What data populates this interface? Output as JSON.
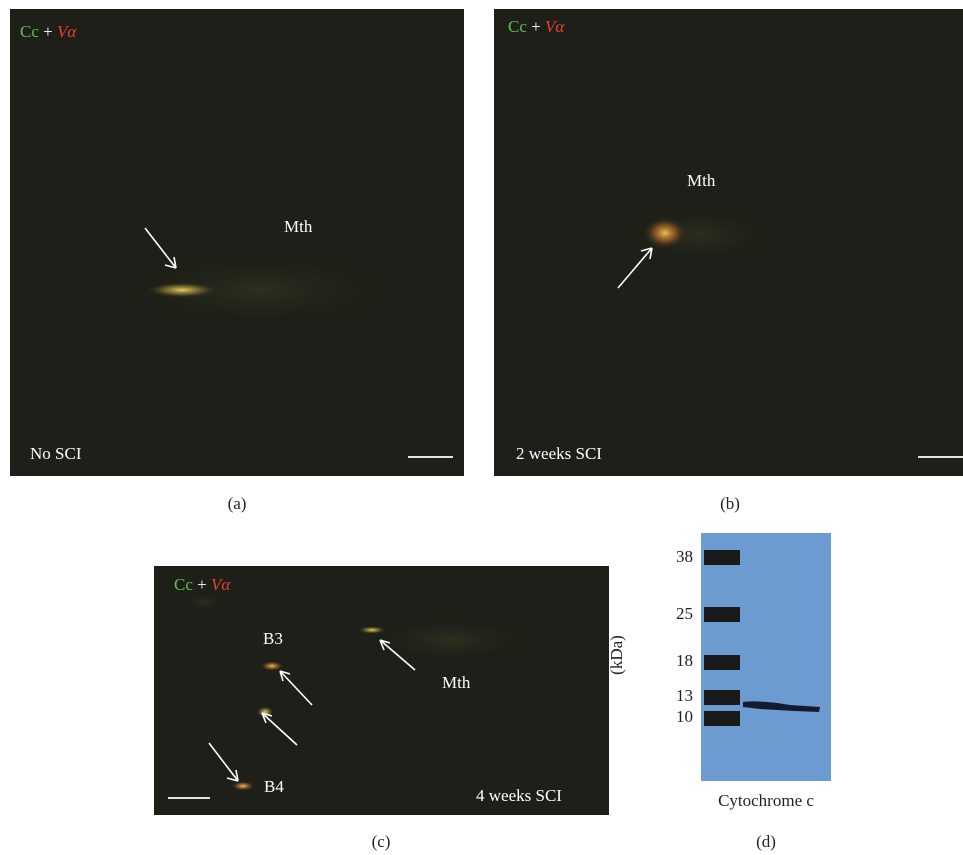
{
  "panels": [
    {
      "caption": "(a)",
      "stain": {
        "green": "Cc",
        "plus": "+",
        "red": "Vα"
      },
      "labels": [
        "Mth",
        "No SCI"
      ]
    },
    {
      "caption": "(b)",
      "stain": {
        "green": "Cc",
        "plus": "+",
        "red": "Vα"
      },
      "labels": [
        "Mth",
        "2 weeks SCI"
      ]
    },
    {
      "caption": "(c)",
      "stain": {
        "green": "Cc",
        "plus": "+",
        "red": "Vα"
      },
      "labels": [
        "B3",
        "Mth",
        "B4",
        "4 weeks SCI"
      ]
    }
  ],
  "blot": {
    "caption": "(d)",
    "axis_label": "(kDa)",
    "markers": [
      "38",
      "25",
      "18",
      "13",
      "10"
    ],
    "lane_label": "Cytochrome c"
  }
}
